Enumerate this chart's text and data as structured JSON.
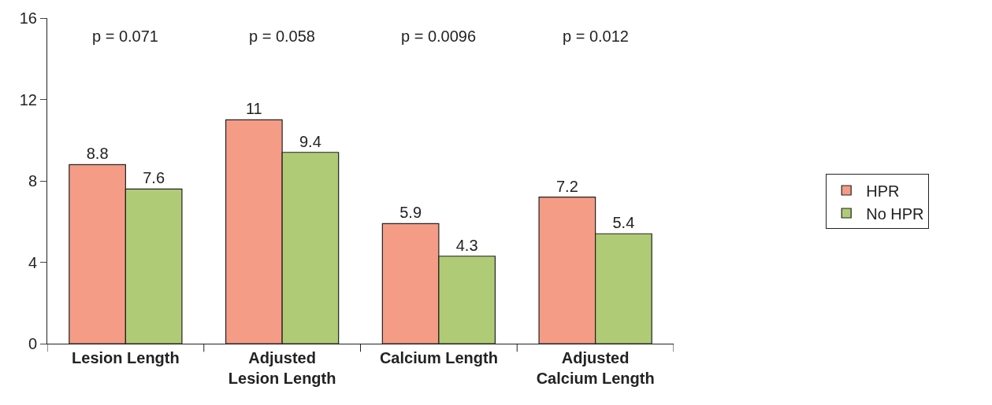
{
  "chart_data": {
    "type": "bar",
    "categories": [
      "Lesion Length",
      "Adjusted Lesion Length",
      "Calcium Length",
      "Adjusted Calcium Length"
    ],
    "series": [
      {
        "name": "HPR",
        "color": "#f49c86",
        "values": [
          8.8,
          11,
          5.9,
          7.2
        ]
      },
      {
        "name": "No HPR",
        "color": "#b0cb76",
        "values": [
          7.6,
          9.4,
          4.3,
          5.4
        ]
      }
    ],
    "ylim": [
      0,
      16
    ],
    "yticks": [
      0,
      4,
      8,
      12,
      16
    ],
    "data_labels": true,
    "legend": "right",
    "annotations": [
      "p = 0.071",
      "p = 0.058",
      "p = 0.0096",
      "p = 0.012"
    ]
  }
}
